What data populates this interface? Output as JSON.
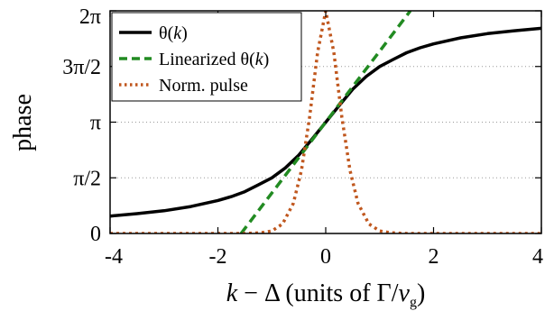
{
  "chart_data": {
    "type": "line",
    "xlabel": "k − Δ (units of Γ/v",
    "xlabel_sub": "g",
    "xlabel_end": ")",
    "ylabel": "phase",
    "xlim": [
      -4,
      4
    ],
    "ylim": [
      0,
      6.2832
    ],
    "x_ticks": [
      -4,
      -2,
      0,
      2,
      4
    ],
    "x_tick_labels": [
      "-4",
      "-2",
      "0",
      "2",
      "4"
    ],
    "y_ticks": [
      0,
      1.5708,
      3.1416,
      4.7124,
      6.2832
    ],
    "y_tick_labels": [
      "0",
      "π/2",
      "π",
      "3π/2",
      "2π"
    ],
    "grid": "horizontal dotted",
    "legend_position": "top-left",
    "series": [
      {
        "name_parts": [
          "θ(",
          "k",
          ")"
        ],
        "style": "solid",
        "color": "#000000",
        "x": [
          -4.0,
          -3.5,
          -3.0,
          -2.5,
          -2.0,
          -1.75,
          -1.5,
          -1.25,
          -1.0,
          -0.75,
          -0.5,
          -0.25,
          0.0,
          0.25,
          0.5,
          0.75,
          1.0,
          1.25,
          1.5,
          1.75,
          2.0,
          2.5,
          3.0,
          3.5,
          4.0
        ],
        "y": [
          0.49,
          0.56,
          0.64,
          0.76,
          0.93,
          1.04,
          1.18,
          1.37,
          1.57,
          1.85,
          2.21,
          2.67,
          3.14,
          3.61,
          4.07,
          4.43,
          4.71,
          4.91,
          5.1,
          5.24,
          5.35,
          5.52,
          5.64,
          5.72,
          5.79
        ]
      },
      {
        "name_parts": [
          "Linearized θ(",
          "k",
          ")"
        ],
        "style": "dashed",
        "color": "#228b22",
        "x": [
          -1.57,
          1.57
        ],
        "y": [
          0.0,
          6.2832
        ]
      },
      {
        "name_parts": [
          "Norm. pulse"
        ],
        "style": "dotted",
        "color": "#c0571e",
        "x": [
          -2.0,
          -1.5,
          -1.2,
          -1.0,
          -0.8,
          -0.6,
          -0.45,
          -0.3,
          -0.15,
          0.0,
          0.15,
          0.3,
          0.45,
          0.6,
          0.8,
          1.0,
          1.2,
          1.5,
          4.0
        ],
        "y": [
          0.0,
          0.0,
          0.02,
          0.07,
          0.27,
          0.85,
          1.78,
          3.28,
          5.11,
          6.28,
          5.11,
          3.28,
          1.78,
          0.85,
          0.27,
          0.07,
          0.02,
          0.0,
          0.0
        ],
        "x_extend_left": -4.0
      }
    ]
  }
}
